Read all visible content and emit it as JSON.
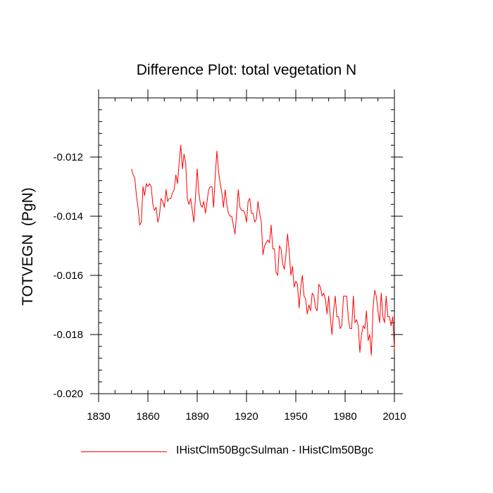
{
  "chart_data": {
    "type": "line",
    "title": "Difference Plot: total vegetation N",
    "xlabel": "",
    "ylabel": "TOTVEGN  (PgN)",
    "xlim": [
      1830,
      2010
    ],
    "ylim": [
      -0.02,
      -0.01
    ],
    "x_ticks": [
      1830,
      1860,
      1890,
      1920,
      1950,
      1980,
      2010
    ],
    "x_tick_labels": [
      "1830",
      "1860",
      "1890",
      "1920",
      "1950",
      "1980",
      "2010"
    ],
    "y_ticks": [
      -0.02,
      -0.018,
      -0.016,
      -0.014,
      -0.012
    ],
    "y_tick_labels": [
      "-0.020",
      "-0.018",
      "-0.016",
      "-0.014",
      "-0.012"
    ],
    "grid": false,
    "legend_position": "bottom",
    "series": [
      {
        "name": "IHistClm50BgcSulman - IHistClm50Bgc",
        "color": "#ff0000",
        "x": [
          1850,
          1851,
          1852,
          1853,
          1854,
          1855,
          1856,
          1857,
          1858,
          1859,
          1860,
          1861,
          1862,
          1863,
          1864,
          1865,
          1866,
          1867,
          1868,
          1869,
          1870,
          1871,
          1872,
          1873,
          1874,
          1875,
          1876,
          1877,
          1878,
          1879,
          1880,
          1881,
          1882,
          1883,
          1884,
          1885,
          1886,
          1887,
          1888,
          1889,
          1890,
          1891,
          1892,
          1893,
          1894,
          1895,
          1896,
          1897,
          1898,
          1899,
          1900,
          1901,
          1902,
          1903,
          1904,
          1905,
          1906,
          1907,
          1908,
          1909,
          1910,
          1911,
          1912,
          1913,
          1914,
          1915,
          1916,
          1917,
          1918,
          1919,
          1920,
          1921,
          1922,
          1923,
          1924,
          1925,
          1926,
          1927,
          1928,
          1929,
          1930,
          1931,
          1932,
          1933,
          1934,
          1935,
          1936,
          1937,
          1938,
          1939,
          1940,
          1941,
          1942,
          1943,
          1944,
          1945,
          1946,
          1947,
          1948,
          1949,
          1950,
          1951,
          1952,
          1953,
          1954,
          1955,
          1956,
          1957,
          1958,
          1959,
          1960,
          1961,
          1962,
          1963,
          1964,
          1965,
          1966,
          1967,
          1968,
          1969,
          1970,
          1971,
          1972,
          1973,
          1974,
          1975,
          1976,
          1977,
          1978,
          1979,
          1980,
          1981,
          1982,
          1983,
          1984,
          1985,
          1986,
          1987,
          1988,
          1989,
          1990,
          1991,
          1992,
          1993,
          1994,
          1995,
          1996,
          1997,
          1998,
          1999,
          2000,
          2001,
          2002,
          2003,
          2004,
          2005,
          2006,
          2007,
          2008,
          2009,
          2010
        ],
        "y": [
          -0.0124,
          -0.0126,
          -0.0127,
          -0.0133,
          -0.0137,
          -0.0143,
          -0.0142,
          -0.013,
          -0.0133,
          -0.0129,
          -0.013,
          -0.0129,
          -0.013,
          -0.0136,
          -0.0138,
          -0.0137,
          -0.0142,
          -0.014,
          -0.0134,
          -0.0135,
          -0.0137,
          -0.0131,
          -0.0135,
          -0.0134,
          -0.0134,
          -0.0132,
          -0.0131,
          -0.0126,
          -0.0129,
          -0.0122,
          -0.0116,
          -0.0124,
          -0.0119,
          -0.0122,
          -0.0134,
          -0.0136,
          -0.0134,
          -0.0138,
          -0.0142,
          -0.0133,
          -0.0124,
          -0.0132,
          -0.0136,
          -0.0137,
          -0.0135,
          -0.0139,
          -0.0135,
          -0.0131,
          -0.013,
          -0.013,
          -0.0137,
          -0.0126,
          -0.0118,
          -0.0125,
          -0.0129,
          -0.0132,
          -0.0137,
          -0.0131,
          -0.0136,
          -0.0139,
          -0.014,
          -0.014,
          -0.0143,
          -0.0146,
          -0.0139,
          -0.0131,
          -0.0137,
          -0.0138,
          -0.0138,
          -0.0139,
          -0.0142,
          -0.0135,
          -0.0134,
          -0.0139,
          -0.0139,
          -0.0142,
          -0.0141,
          -0.0135,
          -0.0139,
          -0.0142,
          -0.0153,
          -0.015,
          -0.0149,
          -0.0148,
          -0.0149,
          -0.0143,
          -0.0151,
          -0.0151,
          -0.0159,
          -0.016,
          -0.015,
          -0.0151,
          -0.0156,
          -0.0158,
          -0.0153,
          -0.0146,
          -0.0152,
          -0.016,
          -0.0157,
          -0.0164,
          -0.0162,
          -0.0163,
          -0.0171,
          -0.0164,
          -0.016,
          -0.0167,
          -0.0168,
          -0.0173,
          -0.017,
          -0.0172,
          -0.0166,
          -0.0167,
          -0.0171,
          -0.0172,
          -0.0163,
          -0.0164,
          -0.0167,
          -0.0166,
          -0.0168,
          -0.0173,
          -0.0167,
          -0.0174,
          -0.018,
          -0.0172,
          -0.0167,
          -0.0174,
          -0.0174,
          -0.0178,
          -0.0177,
          -0.0167,
          -0.0167,
          -0.0167,
          -0.0175,
          -0.0178,
          -0.0178,
          -0.0167,
          -0.0176,
          -0.0175,
          -0.0177,
          -0.0186,
          -0.018,
          -0.0177,
          -0.0178,
          -0.0172,
          -0.0182,
          -0.018,
          -0.0187,
          -0.0171,
          -0.0165,
          -0.0167,
          -0.0172,
          -0.0176,
          -0.0166,
          -0.0174,
          -0.0176,
          -0.0167,
          -0.0174,
          -0.0174,
          -0.0177,
          -0.0174,
          -0.0185
        ]
      }
    ]
  }
}
